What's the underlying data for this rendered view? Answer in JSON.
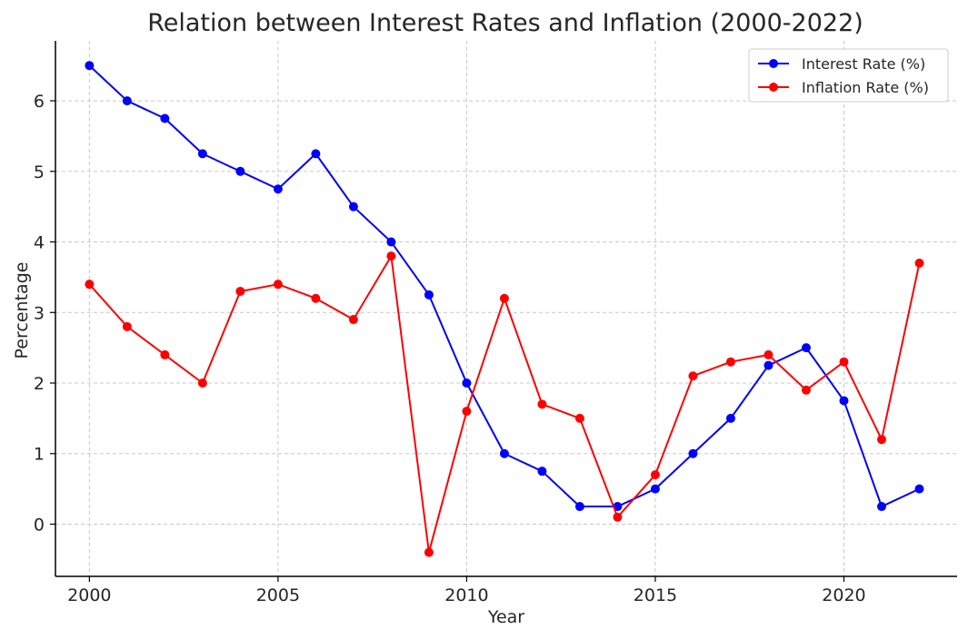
{
  "chart_data": {
    "type": "line",
    "title": "Relation between Interest Rates and Inflation (2000-2022)",
    "xlabel": "Year",
    "ylabel": "Percentage",
    "x": [
      2000,
      2001,
      2002,
      2003,
      2004,
      2005,
      2006,
      2007,
      2008,
      2009,
      2010,
      2011,
      2012,
      2013,
      2014,
      2015,
      2016,
      2017,
      2018,
      2019,
      2020,
      2021,
      2022
    ],
    "xlim": [
      1999.1,
      2023.0
    ],
    "ylim": [
      -0.74,
      6.85
    ],
    "xticks": [
      2000,
      2005,
      2010,
      2015,
      2020
    ],
    "yticks": [
      0,
      1,
      2,
      3,
      4,
      5,
      6
    ],
    "grid": true,
    "legend_position": "top-right",
    "series": [
      {
        "name": "Interest Rate (%)",
        "color": "#0000ff",
        "values": [
          6.5,
          6.0,
          5.75,
          5.25,
          5.0,
          4.75,
          5.25,
          4.5,
          4.0,
          3.25,
          2.0,
          1.0,
          0.75,
          0.25,
          0.25,
          0.5,
          1.0,
          1.5,
          2.25,
          2.5,
          1.75,
          0.25,
          0.5
        ]
      },
      {
        "name": "Inflation Rate (%)",
        "color": "#ff0000",
        "values": [
          3.4,
          2.8,
          2.4,
          2.0,
          3.3,
          3.4,
          3.2,
          2.9,
          3.8,
          -0.4,
          1.6,
          3.2,
          1.7,
          1.5,
          0.1,
          0.7,
          2.1,
          2.3,
          2.4,
          1.9,
          2.3,
          1.2,
          3.7
        ]
      }
    ]
  }
}
